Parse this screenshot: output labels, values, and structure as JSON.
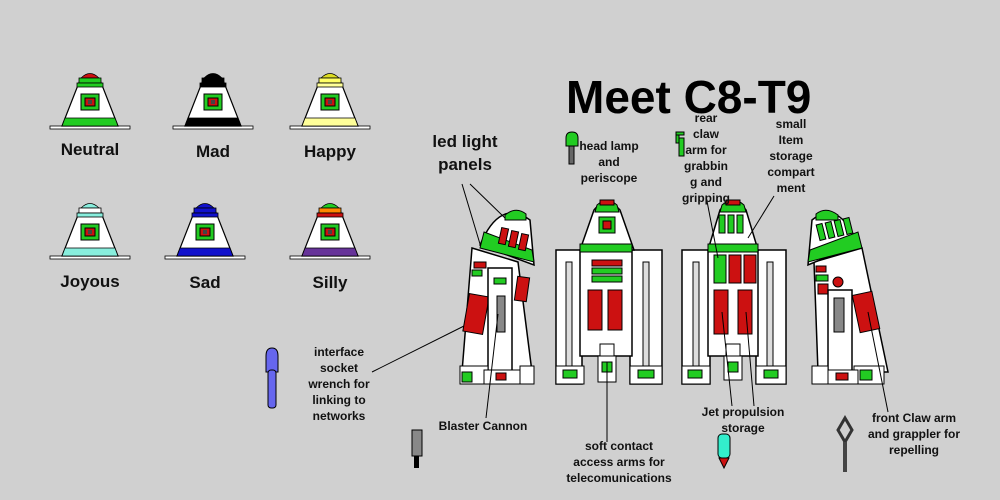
{
  "title": "Meet C8-T9",
  "moods": [
    {
      "label": "Neutral",
      "band": "#22cc22",
      "cap": [
        "#cc1111",
        "#22cc22",
        "#22cc22"
      ]
    },
    {
      "label": "Mad",
      "band": "#000000",
      "cap": [
        "#000000",
        "#000000",
        "#000000"
      ]
    },
    {
      "label": "Happy",
      "band": "#ffff99",
      "cap": [
        "#dddd22",
        "#ffff66",
        "#ffff99"
      ]
    },
    {
      "label": "Joyous",
      "band": "#88eedd",
      "cap": [
        "#88eedd",
        "#ffffff",
        "#88eedd"
      ]
    },
    {
      "label": "Sad",
      "band": "#1111cc",
      "cap": [
        "#1111cc",
        "#1111cc",
        "#1111cc"
      ]
    },
    {
      "label": "Silly",
      "band": "#663399",
      "cap": [
        "#22cc22",
        "#ff8800",
        "#cc1111"
      ]
    }
  ],
  "callouts": {
    "led": [
      "led light",
      "panels"
    ],
    "headlamp": [
      "head lamp",
      "and",
      "periscope"
    ],
    "rear_claw": [
      "rear",
      "claw",
      "arm for",
      "grabbin",
      "g and",
      "gripping"
    ],
    "storage": [
      "small",
      "Item",
      "storage",
      "compart",
      "ment"
    ],
    "interface": [
      "interface",
      "socket",
      "wrench for",
      "linking to",
      "networks"
    ],
    "blaster": [
      "Blaster Cannon"
    ],
    "soft_arms": [
      "soft contact",
      "access arms for",
      "telecomunications"
    ],
    "jet": [
      "Jet propulsion",
      "storage"
    ],
    "front_claw": [
      "front Claw arm",
      "and grappler for",
      "repelling"
    ]
  },
  "colors": {
    "background": "#d0d0d0",
    "green": "#22cc22",
    "red": "#cc1111",
    "white": "#ffffff",
    "outline": "#000000"
  }
}
